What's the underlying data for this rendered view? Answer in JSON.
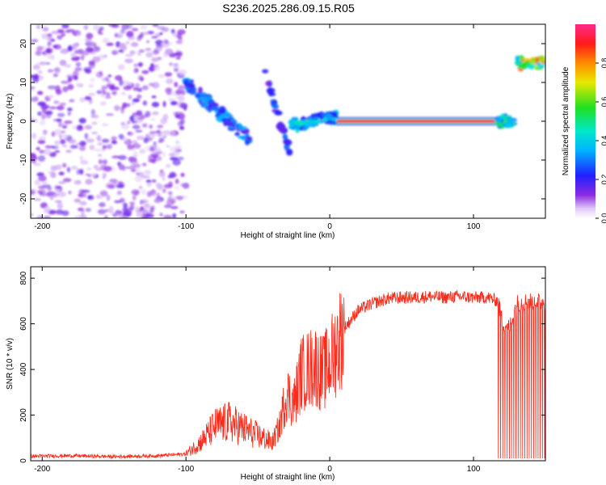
{
  "title": "S236.2025.286.09.15.R05",
  "colors": {
    "background": "#ffffff",
    "axes": "#000000",
    "snr_line": "#ff2a1a"
  },
  "chart_data": [
    {
      "type": "heatmap",
      "name": "spectrogram",
      "xlabel": "Height of straight line (km)",
      "ylabel": "Frequency (Hz)",
      "xlim": [
        -208,
        150
      ],
      "ylim": [
        -25,
        25
      ],
      "xticks": [
        -200,
        -100,
        0,
        100
      ],
      "xtick_labels": [
        "-200",
        "-100",
        "0",
        "100"
      ],
      "yticks": [
        -20,
        -10,
        0,
        10,
        20
      ],
      "ytick_labels": [
        "-20",
        "-10",
        "0",
        "10",
        "20"
      ],
      "colorbar": {
        "label": "Normalized spectral amplitude",
        "range": [
          0,
          1
        ],
        "ticks": [
          0.0,
          0.2,
          0.4,
          0.6,
          0.8
        ],
        "tick_labels": [
          "0.0",
          "0.2",
          "0.4",
          "0.6",
          "0.8"
        ],
        "colormap": "rainbow (purple-blue-cyan-green-yellow-red-magenta)"
      },
      "features": [
        {
          "kind": "noise",
          "x": [
            -208,
            -100
          ],
          "freq": [
            -25,
            25
          ],
          "amplitude": 0.1
        },
        {
          "kind": "streak",
          "x_start": -100,
          "x_end": -55,
          "f_start": 10,
          "f_end": -5,
          "amplitude": 0.3
        },
        {
          "kind": "streak",
          "x_start": -45,
          "x_end": -28,
          "f_start": 12,
          "f_end": -8,
          "amplitude": 0.25
        },
        {
          "kind": "streak",
          "x_start": -28,
          "x_end": 5,
          "f_start": -1,
          "f_end": 1,
          "amplitude": 0.4
        },
        {
          "kind": "band",
          "x_start": 5,
          "x_end": 117,
          "f_start": 0,
          "f_end": 0,
          "amplitude": 0.9
        },
        {
          "kind": "blob",
          "x_start": 117,
          "x_end": 128,
          "f_start": 0,
          "f_end": 0,
          "amplitude": 0.5
        },
        {
          "kind": "blob",
          "x_start": 130,
          "x_end": 150,
          "f_start": 15,
          "f_end": 15,
          "amplitude": 0.7
        }
      ]
    },
    {
      "type": "line",
      "name": "snr",
      "xlabel": "Height of straight line (km)",
      "ylabel": "SNR (10 * v/v)",
      "xlim": [
        -208,
        150
      ],
      "ylim": [
        0,
        850
      ],
      "xticks": [
        -200,
        -100,
        0,
        100
      ],
      "xtick_labels": [
        "-200",
        "-100",
        "0",
        "100"
      ],
      "yticks": [
        0,
        200,
        400,
        600,
        800
      ],
      "ytick_labels": [
        "0",
        "200",
        "400",
        "600",
        "800"
      ],
      "series": [
        {
          "x": [
            -208,
            -180,
            -150,
            -120,
            -100,
            -90,
            -80,
            -70,
            -60,
            -50,
            -40,
            -35,
            -30,
            -25,
            -20,
            -15,
            -10,
            -5,
            0,
            10,
            20,
            30,
            40,
            50,
            60,
            70,
            80,
            90,
            100,
            110,
            117,
            120,
            125,
            130,
            140,
            150
          ],
          "y": [
            20,
            22,
            18,
            22,
            30,
            80,
            150,
            170,
            140,
            110,
            80,
            150,
            300,
            250,
            380,
            400,
            420,
            380,
            430,
            580,
            660,
            690,
            710,
            715,
            715,
            720,
            715,
            720,
            715,
            715,
            700,
            610,
            580,
            690,
            700,
            695
          ]
        }
      ]
    }
  ]
}
